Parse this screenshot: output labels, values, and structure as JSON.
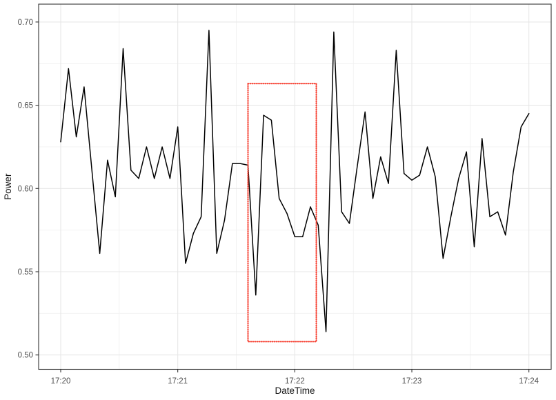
{
  "chart_data": {
    "type": "line",
    "title": "",
    "xlabel": "DateTime",
    "ylabel": "Power",
    "x_tick_labels": [
      "17:20",
      "17:21",
      "17:22",
      "17:23",
      "17:24"
    ],
    "y_tick_labels": [
      "0.50",
      "0.55",
      "0.60",
      "0.65",
      "0.70"
    ],
    "y_tick_values": [
      0.5,
      0.55,
      0.6,
      0.65,
      0.7
    ],
    "ylim": [
      0.491,
      0.711
    ],
    "x_start": "17:20:00",
    "x_end": "17:24:00",
    "sample_interval_seconds": 4,
    "grid": "major+minor",
    "legend": "none",
    "series": [
      {
        "name": "Power",
        "color": "#000000",
        "values": [
          0.628,
          0.672,
          0.631,
          0.661,
          0.611,
          0.561,
          0.617,
          0.595,
          0.684,
          0.611,
          0.606,
          0.625,
          0.606,
          0.625,
          0.606,
          0.637,
          0.555,
          0.573,
          0.583,
          0.695,
          0.561,
          0.581,
          0.615,
          0.615,
          0.614,
          0.536,
          0.644,
          0.641,
          0.594,
          0.585,
          0.571,
          0.571,
          0.589,
          0.578,
          0.514,
          0.694,
          0.586,
          0.579,
          0.613,
          0.646,
          0.594,
          0.619,
          0.603,
          0.683,
          0.609,
          0.605,
          0.608,
          0.625,
          0.607,
          0.558,
          0.583,
          0.606,
          0.622,
          0.565,
          0.63,
          0.583,
          0.586,
          0.572,
          0.61,
          0.637,
          0.645
        ]
      }
    ],
    "annotation_box": {
      "x_start": "17:21:36",
      "x_end": "17:22:11",
      "y_bottom": 0.508,
      "y_top": 0.663,
      "color": "#f63b2c",
      "style": "dotted"
    },
    "colors": {
      "background": "#ffffff",
      "panel_background": "#ffffff",
      "panel_border": "#333333",
      "grid_major": "#e7e7e7",
      "grid_minor": "#f1f1f1",
      "tick_mark": "#333333",
      "tick_text": "#4d4d4d",
      "axis_title": "#141414",
      "line": "#000000"
    }
  }
}
